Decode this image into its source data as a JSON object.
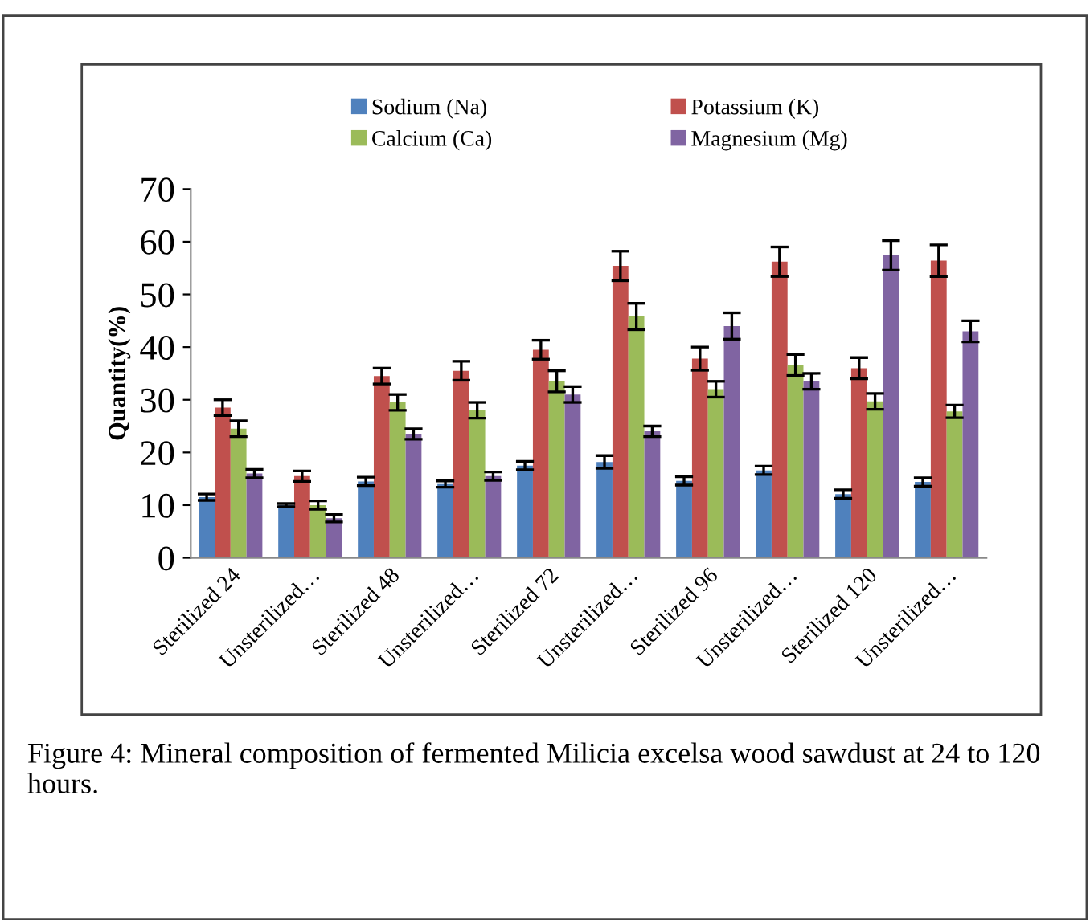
{
  "chart_data": {
    "type": "bar",
    "ylabel": "Quantity(%)",
    "categories": [
      "Sterilized 24",
      "Unsterilized…",
      "Sterilized 48",
      "Unsterilized…",
      "Sterilized 72",
      "Unsterilized…",
      "Sterilized 96",
      "Unsterilized…",
      "Sterilized 120",
      "Unsterilized…"
    ],
    "series": [
      {
        "name": "Sodium (Na)",
        "color": "#4f81bd",
        "values": [
          11.5,
          10,
          14.5,
          14,
          17.5,
          18.2,
          14.6,
          16.6,
          12.1,
          14.4
        ],
        "errors": [
          0.6,
          0.3,
          0.8,
          0.6,
          0.8,
          1.2,
          0.8,
          0.8,
          0.8,
          0.8
        ]
      },
      {
        "name": "Potassium (K)",
        "color": "#c0504d",
        "values": [
          28.5,
          15.5,
          34.5,
          35.5,
          39.5,
          55.4,
          37.8,
          56.2,
          36,
          56.4
        ],
        "errors": [
          1.5,
          1,
          1.5,
          1.8,
          1.8,
          2.8,
          2.2,
          2.8,
          2,
          3
        ]
      },
      {
        "name": "Calcium (Ca)",
        "color": "#9bbb59",
        "values": [
          24.5,
          10,
          29.5,
          28,
          33.5,
          45.8,
          32,
          36.6,
          29.7,
          27.8
        ],
        "errors": [
          1.5,
          0.8,
          1.5,
          1.5,
          2,
          2.5,
          1.5,
          2,
          1.5,
          1.2
        ]
      },
      {
        "name": "Magnesium (Mg)",
        "color": "#8064a2",
        "values": [
          16,
          7.5,
          23.5,
          15.5,
          31,
          24,
          44,
          33.5,
          57.4,
          43
        ],
        "errors": [
          0.8,
          0.7,
          1,
          0.8,
          1.5,
          1,
          2.5,
          1.5,
          2.8,
          2
        ]
      }
    ],
    "ylim": [
      0,
      70
    ],
    "yticks": [
      0,
      10,
      20,
      30,
      40,
      50,
      60,
      70
    ],
    "grid": false,
    "legend": "top",
    "annotations": [
      "Figure 4: Mineral composition of fermented Milicia excelsa wood sawdust at 24 to 120 hours."
    ]
  }
}
